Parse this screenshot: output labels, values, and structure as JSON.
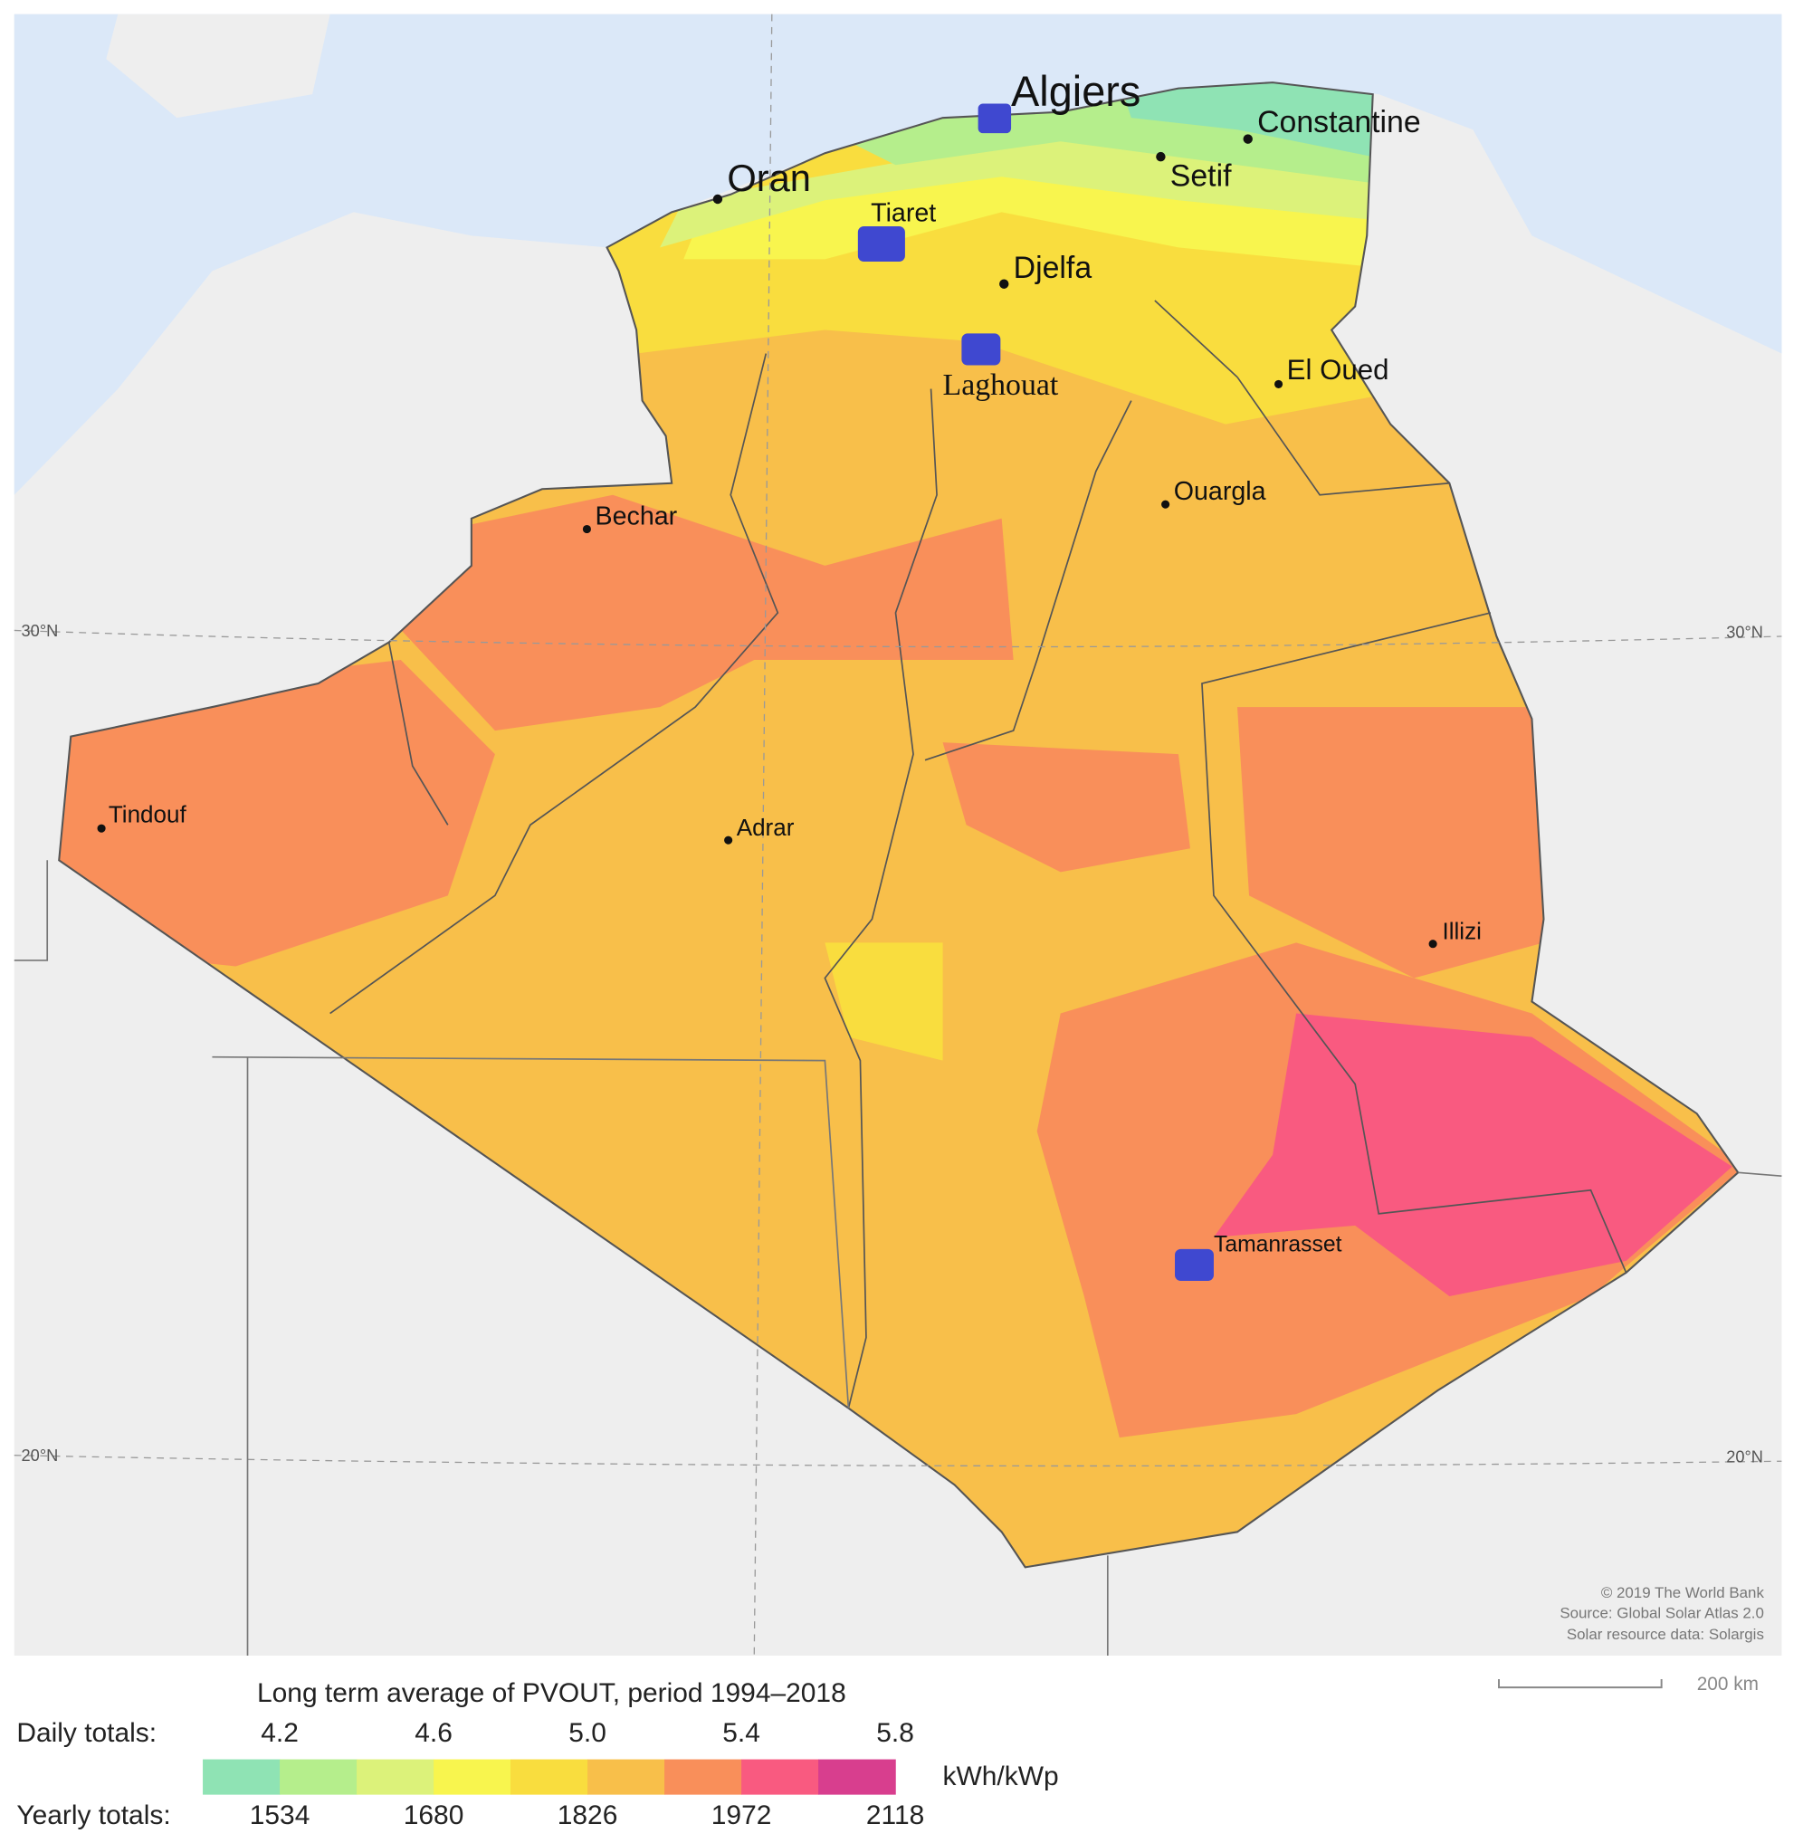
{
  "map": {
    "cities": [
      "Algiers",
      "Constantine",
      "Setif",
      "Oran",
      "Tiaret",
      "Djelfa",
      "Laghouat",
      "El Oued",
      "Ouargla",
      "Bechar",
      "Tindouf",
      "Adrar",
      "Illizi",
      "Tamanrasset"
    ],
    "graticule": [
      "30°N",
      "30°N",
      "20°N",
      "20°N"
    ],
    "credits": [
      "© 2019 The World Bank",
      "Source: Global Solar Atlas 2.0",
      "Solar resource data: Solargis"
    ],
    "scale_bar": "200 km"
  },
  "legend": {
    "title": "Long term average of PVOUT, period 1994–2018",
    "daily_label": "Daily totals:",
    "daily_ticks": [
      "4.2",
      "4.6",
      "5.0",
      "5.4",
      "5.8"
    ],
    "unit": "kWh/kWp",
    "yearly_label": "Yearly totals:",
    "yearly_ticks": [
      "1534",
      "1680",
      "1826",
      "1972",
      "2118"
    ],
    "colors": [
      "#8fe3b4",
      "#b5ee8c",
      "#dcf27a",
      "#f8f54e",
      "#f9dd3e",
      "#f8bf4a",
      "#f98f5a",
      "#f95a80",
      "#d83e8e"
    ]
  }
}
